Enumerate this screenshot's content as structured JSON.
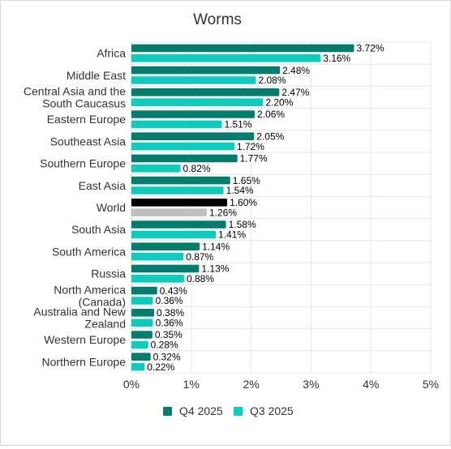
{
  "chart_data": {
    "type": "bar",
    "orientation": "horizontal",
    "title": "Worms",
    "xlabel": "",
    "ylabel": "",
    "xlim": [
      0,
      5
    ],
    "x_ticks": [
      "0%",
      "1%",
      "2%",
      "3%",
      "4%",
      "5%"
    ],
    "grid": true,
    "legend_position": "bottom",
    "categories": [
      "Africa",
      "Middle East",
      "Central Asia and the South Caucasus",
      "Eastern Europe",
      "Southeast Asia",
      "Southern Europe",
      "East Asia",
      "World",
      "South Asia",
      "South America",
      "Russia",
      "North America (Canada)",
      "Australia and New Zealand",
      "Western Europe",
      "Northern Europe"
    ],
    "category_lines": [
      [
        "Africa"
      ],
      [
        "Middle East"
      ],
      [
        "Central Asia and the",
        "South Caucasus"
      ],
      [
        "Eastern Europe"
      ],
      [
        "Southeast Asia"
      ],
      [
        "Southern Europe"
      ],
      [
        "East Asia"
      ],
      [
        "World"
      ],
      [
        "South Asia"
      ],
      [
        "South America"
      ],
      [
        "Russia"
      ],
      [
        "North America",
        "(Canada)"
      ],
      [
        "Australia and New",
        "Zealand"
      ],
      [
        "Western Europe"
      ],
      [
        "Northern Europe"
      ]
    ],
    "series": [
      {
        "name": "Q4 2025",
        "color": "#047d6e",
        "values": [
          3.72,
          2.48,
          2.47,
          2.06,
          2.05,
          1.77,
          1.65,
          1.6,
          1.58,
          1.14,
          1.13,
          0.43,
          0.38,
          0.35,
          0.32
        ],
        "labels": [
          "3.72%",
          "2.48%",
          "2.47%",
          "2.06%",
          "2.05%",
          "1.77%",
          "1.65%",
          "1.60%",
          "1.58%",
          "1.14%",
          "1.13%",
          "0.43%",
          "0.38%",
          "0.35%",
          "0.32%"
        ]
      },
      {
        "name": "Q3 2025",
        "color": "#0fcbbd",
        "values": [
          3.16,
          2.08,
          2.2,
          1.51,
          1.72,
          0.82,
          1.54,
          1.26,
          1.41,
          0.87,
          0.88,
          0.36,
          0.36,
          0.28,
          0.22
        ],
        "labels": [
          "3.16%",
          "2.08%",
          "2.20%",
          "1.51%",
          "1.72%",
          "0.82%",
          "1.54%",
          "1.26%",
          "1.41%",
          "0.87%",
          "0.88%",
          "0.36%",
          "0.36%",
          "0.28%",
          "0.22%"
        ]
      }
    ],
    "highlight": {
      "category": "World",
      "colors": [
        "#000000",
        "#c0c0c0"
      ]
    }
  }
}
